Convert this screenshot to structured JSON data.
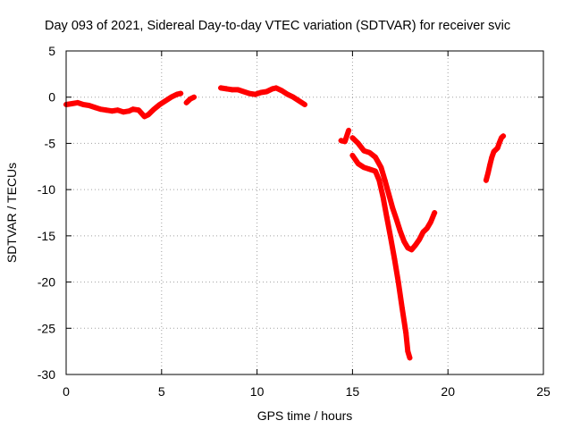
{
  "chart_data": {
    "type": "scatter",
    "title": "Day 093 of 2021, Sidereal Day-to-day VTEC variation (SDTVAR) for receiver svic",
    "xlabel": "GPS time / hours",
    "ylabel": "SDTVAR / TECUs",
    "xlim": [
      0,
      25
    ],
    "ylim": [
      -30,
      5
    ],
    "xticks": [
      "0",
      "5",
      "10",
      "15",
      "20",
      "25"
    ],
    "yticks": [
      "5",
      "0",
      "-5",
      "-10",
      "-15",
      "-20",
      "-25",
      "-30"
    ],
    "grid": true,
    "marker": "+",
    "color": "#ff0000",
    "series": [
      {
        "points": [
          [
            0.0,
            -0.8
          ],
          [
            0.3,
            -0.7
          ],
          [
            0.6,
            -0.6
          ],
          [
            0.9,
            -0.8
          ],
          [
            1.2,
            -0.9
          ],
          [
            1.5,
            -1.1
          ],
          [
            1.8,
            -1.3
          ],
          [
            2.1,
            -1.4
          ],
          [
            2.4,
            -1.5
          ],
          [
            2.7,
            -1.4
          ],
          [
            3.0,
            -1.6
          ],
          [
            3.3,
            -1.5
          ],
          [
            3.5,
            -1.3
          ],
          [
            3.8,
            -1.4
          ],
          [
            4.1,
            -2.1
          ],
          [
            4.3,
            -1.9
          ],
          [
            4.6,
            -1.3
          ],
          [
            4.9,
            -0.8
          ],
          [
            5.2,
            -0.4
          ],
          [
            5.5,
            0.0
          ],
          [
            5.8,
            0.3
          ],
          [
            6.0,
            0.4
          ]
        ]
      },
      {
        "points": [
          [
            6.3,
            -0.6
          ],
          [
            6.5,
            -0.2
          ],
          [
            6.7,
            0.0
          ]
        ]
      },
      {
        "points": [
          [
            8.1,
            1.0
          ],
          [
            8.4,
            0.9
          ],
          [
            8.7,
            0.8
          ],
          [
            9.0,
            0.8
          ],
          [
            9.3,
            0.6
          ],
          [
            9.6,
            0.4
          ],
          [
            9.9,
            0.3
          ],
          [
            10.2,
            0.5
          ],
          [
            10.5,
            0.6
          ],
          [
            10.8,
            0.9
          ],
          [
            11.0,
            1.0
          ],
          [
            11.3,
            0.7
          ],
          [
            11.6,
            0.3
          ],
          [
            11.9,
            0.0
          ],
          [
            12.2,
            -0.4
          ],
          [
            12.5,
            -0.8
          ]
        ]
      },
      {
        "points": [
          [
            14.4,
            -4.7
          ],
          [
            14.6,
            -4.8
          ],
          [
            14.8,
            -3.6
          ]
        ]
      },
      {
        "points": [
          [
            15.0,
            -4.4
          ],
          [
            15.3,
            -5.0
          ],
          [
            15.6,
            -5.8
          ],
          [
            15.9,
            -6.0
          ],
          [
            16.2,
            -6.5
          ],
          [
            16.5,
            -7.6
          ],
          [
            16.7,
            -9.0
          ],
          [
            16.9,
            -10.5
          ],
          [
            17.1,
            -12.0
          ],
          [
            17.3,
            -13.2
          ],
          [
            17.5,
            -14.5
          ],
          [
            17.7,
            -15.6
          ],
          [
            17.9,
            -16.3
          ],
          [
            18.1,
            -16.5
          ],
          [
            18.3,
            -16.0
          ],
          [
            18.5,
            -15.4
          ],
          [
            18.7,
            -14.6
          ],
          [
            18.9,
            -14.2
          ],
          [
            19.1,
            -13.5
          ],
          [
            19.3,
            -12.5
          ]
        ]
      },
      {
        "points": [
          [
            15.0,
            -6.3
          ],
          [
            15.3,
            -7.2
          ],
          [
            15.6,
            -7.6
          ],
          [
            15.9,
            -7.8
          ],
          [
            16.2,
            -8.0
          ],
          [
            16.4,
            -9.0
          ],
          [
            16.6,
            -10.8
          ],
          [
            16.8,
            -13.0
          ],
          [
            17.0,
            -15.2
          ],
          [
            17.2,
            -17.5
          ],
          [
            17.4,
            -20.0
          ],
          [
            17.6,
            -22.8
          ],
          [
            17.8,
            -25.5
          ],
          [
            17.9,
            -27.5
          ],
          [
            18.0,
            -28.2
          ]
        ]
      },
      {
        "points": [
          [
            22.0,
            -9.0
          ],
          [
            22.1,
            -8.2
          ],
          [
            22.2,
            -7.3
          ],
          [
            22.3,
            -6.5
          ],
          [
            22.4,
            -5.9
          ],
          [
            22.6,
            -5.5
          ],
          [
            22.7,
            -4.9
          ],
          [
            22.8,
            -4.4
          ],
          [
            22.9,
            -4.2
          ]
        ]
      }
    ]
  }
}
